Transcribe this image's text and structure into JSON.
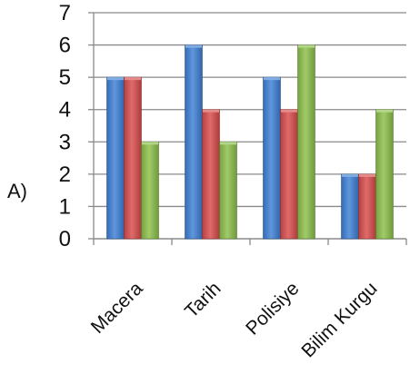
{
  "option_label": "A)",
  "chart_data": {
    "type": "bar",
    "categories": [
      "Macera",
      "Tarih",
      "Polisiye",
      "Bilim Kurgu"
    ],
    "series": [
      {
        "values": [
          5,
          6,
          5,
          2
        ],
        "color": "#3d7fd6"
      },
      {
        "values": [
          5,
          4,
          4,
          2
        ],
        "color": "#d94b4b"
      },
      {
        "values": [
          3,
          3,
          6,
          4
        ],
        "color": "#8cc04a"
      }
    ],
    "yticks": [
      "0",
      "1",
      "2",
      "3",
      "4",
      "5",
      "6",
      "7"
    ],
    "ylim": [
      0,
      7
    ],
    "grid": true,
    "legend": false
  }
}
